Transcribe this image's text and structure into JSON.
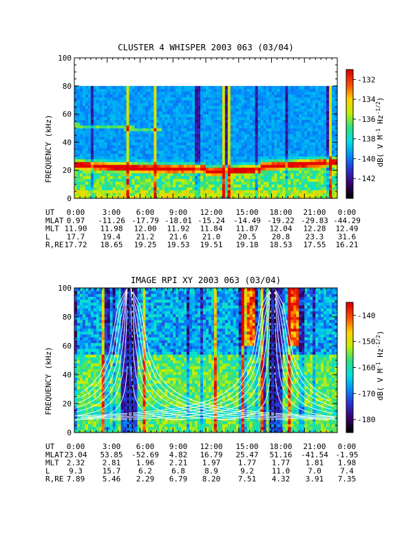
{
  "chart_data": [
    {
      "type": "heatmap",
      "title": "CLUSTER 4 WHISPER 2003 063 (03/04)",
      "ylabel": "FREQUENCY (kHz)",
      "ylim": [
        0,
        100
      ],
      "yticks": [
        "0",
        "20",
        "40",
        "60",
        "80",
        "100"
      ],
      "data_top_khz": 80,
      "colorbar": {
        "label": "dB( V M^-1 Hz^-1/2 )",
        "label_main": "dB( V M",
        "label_exp1": "-1",
        "label_mid": " Hz",
        "label_exp2": "-1/2",
        "label_end": ")",
        "range": [
          -144,
          -131
        ],
        "ticks": [
          "-132",
          "-134",
          "-136",
          "-138",
          "-140",
          "-142"
        ],
        "colors": [
          "#000000",
          "#3a006e",
          "#2a30d0",
          "#0090ff",
          "#00e0e0",
          "#30e080",
          "#c0f000",
          "#ffd000",
          "#ff5000",
          "#e00000"
        ]
      },
      "x_hours": [
        0,
        3,
        6,
        9,
        12,
        15,
        18,
        21,
        24
      ],
      "ephemeris": {
        "row_labels": [
          "UT",
          "MLAT",
          "MLT",
          "L",
          "R,RE"
        ],
        "UT": [
          "0:00",
          "3:00",
          "6:00",
          "9:00",
          "12:00",
          "15:00",
          "18:00",
          "21:00",
          "0:00"
        ],
        "MLAT": [
          "0.97",
          "-11.26",
          "-17.79",
          "-18.01",
          "-15.24",
          "-14.49",
          "-19.22",
          "-29.83",
          "-44.29"
        ],
        "MLT": [
          "11.90",
          "11.98",
          "12.00",
          "11.92",
          "11.84",
          "11.87",
          "12.04",
          "12.28",
          "12.49"
        ],
        "L": [
          "17.7",
          "19.4",
          "21.2",
          "21.6",
          "21.0",
          "20.5",
          "20.8",
          "23.3",
          "31.6"
        ],
        "R,RE": [
          "17.72",
          "18.65",
          "19.25",
          "19.53",
          "19.51",
          "19.18",
          "18.53",
          "17.55",
          "16.21"
        ]
      }
    },
    {
      "type": "heatmap",
      "title": "IMAGE RPI XY 2003 063 (03/04)",
      "ylabel": "FREQUENCY (kHz)",
      "ylim": [
        0,
        100
      ],
      "yticks": [
        "0",
        "20",
        "40",
        "60",
        "80",
        "100"
      ],
      "data_top_khz": 100,
      "colorbar": {
        "label": "dB( V M^-1 Hz^-1/2 )",
        "label_main": "dB( V M",
        "label_exp1": "-1",
        "label_mid": " Hz",
        "label_exp2": "-1/2",
        "label_end": ")",
        "range": [
          -185,
          -135
        ],
        "ticks": [
          "-140",
          "-150",
          "-160",
          "-170",
          "-180"
        ],
        "colors": [
          "#000000",
          "#3a006e",
          "#2a30d0",
          "#0090ff",
          "#00e0e0",
          "#30e080",
          "#c0f000",
          "#ffd000",
          "#ff5000",
          "#e00000"
        ]
      },
      "x_hours": [
        0,
        3,
        6,
        9,
        12,
        15,
        18,
        21,
        24
      ],
      "ephemeris": {
        "row_labels": [
          "UT",
          "MLAT",
          "MLT",
          "L",
          "R,RE"
        ],
        "UT": [
          "0:00",
          "3:00",
          "6:00",
          "9:00",
          "12:00",
          "15:00",
          "18:00",
          "21:00",
          "0:00"
        ],
        "MLAT": [
          "23.04",
          "53.85",
          "-52.69",
          "4.82",
          "16.79",
          "25.47",
          "51.16",
          "-41.54",
          "-1.95"
        ],
        "MLT": [
          "2.32",
          "2.81",
          "1.96",
          "2.21",
          "1.97",
          "1.77",
          "1.77",
          "1.81",
          "1.98"
        ],
        "L": [
          "9.3",
          "15.7",
          "6.2",
          "6.8",
          "8.9",
          "9.2",
          "11.0",
          "7.0",
          "7.4"
        ],
        "R,RE": [
          "7.89",
          "5.46",
          "2.29",
          "6.79",
          "8.20",
          "7.51",
          "4.32",
          "3.91",
          "7.35"
        ]
      }
    }
  ]
}
